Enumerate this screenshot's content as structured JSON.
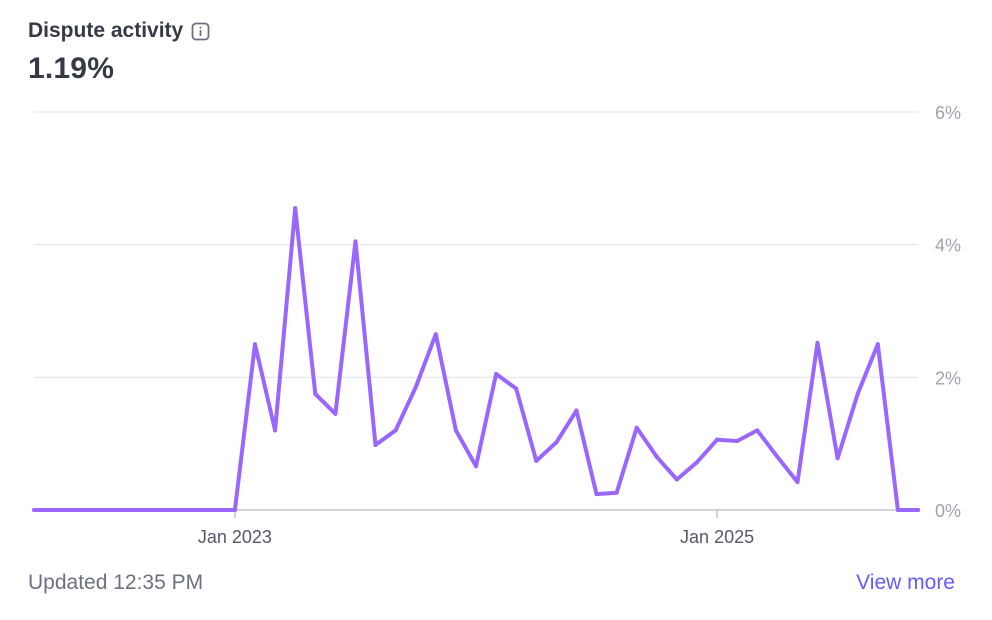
{
  "card": {
    "title": "Dispute activity",
    "info_icon": "info-icon",
    "value": "1.19%",
    "updated": "Updated 12:35 PM",
    "view_more": "View more",
    "accent_color": "#635bff"
  },
  "chart_data": {
    "type": "line",
    "title": "",
    "xlabel": "",
    "ylabel": "",
    "ylim": [
      0,
      6
    ],
    "y_ticks": [
      "0%",
      "2%",
      "4%",
      "6%"
    ],
    "y_tick_values": [
      0,
      2,
      4,
      6
    ],
    "y_axis_position": "right",
    "grid": true,
    "line_color": "#9966ff",
    "x": [
      "2022-03",
      "2022-04",
      "2022-05",
      "2022-06",
      "2022-07",
      "2022-08",
      "2022-09",
      "2022-10",
      "2022-11",
      "2022-12",
      "2023-01",
      "2023-02",
      "2023-03",
      "2023-04",
      "2023-05",
      "2023-06",
      "2023-07",
      "2023-08",
      "2023-09",
      "2023-10",
      "2023-11",
      "2023-12",
      "2024-01",
      "2024-02",
      "2024-03",
      "2024-04",
      "2024-05",
      "2024-06",
      "2024-07",
      "2024-08",
      "2024-09",
      "2024-10",
      "2024-11",
      "2024-12",
      "2025-01",
      "2025-02",
      "2025-03",
      "2025-04",
      "2025-05",
      "2025-06",
      "2025-07",
      "2025-08",
      "2025-09",
      "2025-10",
      "2025-11"
    ],
    "x_ticks": [
      {
        "label": "Jan 2023",
        "x": "2023-01"
      },
      {
        "label": "Jan 2025",
        "x": "2025-01"
      }
    ],
    "series": [
      {
        "values": [
          0,
          0,
          0,
          0,
          0,
          0,
          0,
          0,
          0,
          0,
          0,
          2.5,
          1.2,
          4.55,
          1.75,
          1.45,
          4.05,
          0.98,
          1.2,
          1.85,
          2.65,
          1.2,
          0.66,
          2.05,
          1.83,
          0.74,
          1.02,
          1.5,
          0.24,
          0.26,
          1.24,
          0.8,
          0.46,
          0.72,
          1.06,
          1.04,
          1.2,
          0.8,
          0.42,
          2.52,
          0.78,
          1.75,
          2.5,
          0,
          0
        ]
      }
    ]
  }
}
